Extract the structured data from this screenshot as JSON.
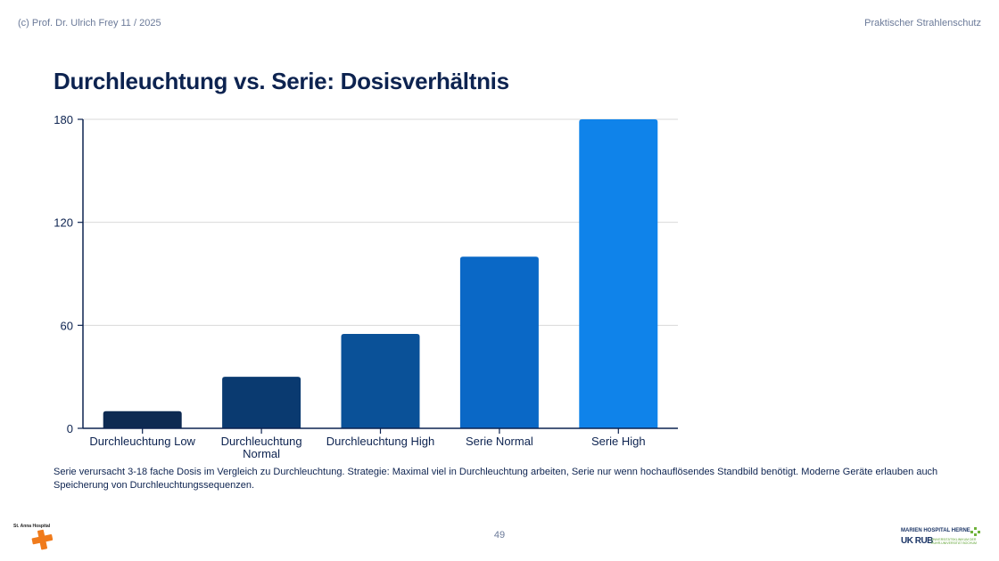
{
  "header": {
    "left": "(c) Prof. Dr. Ulrich Frey 11 / 2025",
    "right": "Praktischer Strahlenschutz"
  },
  "title": "Durchleuchtung vs. Serie: Dosisverhältnis",
  "chart_data": {
    "type": "bar",
    "title": "",
    "xlabel": "",
    "ylabel": "",
    "categories": [
      [
        "Durchleuchtung Low"
      ],
      [
        "Durchleuchtung",
        "Normal"
      ],
      [
        "Durchleuchtung High"
      ],
      [
        "Serie Normal"
      ],
      [
        "Serie High"
      ]
    ],
    "values": [
      10,
      30,
      55,
      100,
      180
    ],
    "colors": [
      "#0d2a52",
      "#0a3a70",
      "#0a5198",
      "#0a68c6",
      "#0f83ea"
    ],
    "ylim": [
      0,
      180
    ],
    "yticks": [
      0,
      60,
      120,
      180
    ],
    "grid": true
  },
  "caption": "Serie verursacht 3-18 fache Dosis im Vergleich zu Durchleuchtung. Strategie: Maximal viel in Durchleuchtung arbeiten, Serie nur wenn hochauflösendes Standbild benötigt. Moderne Geräte erlauben auch Speicherung von Durchleuchtungssequenzen.",
  "page_number": "49",
  "logos": {
    "left": "St. Anna Hospital",
    "right_top": "MARIEN HOSPITAL HERNE",
    "right_bottom": "UK RUB",
    "right_sub": "UNIVERSITÄTSKLINIKUM DER RUHR-UNIVERSITÄT BOCHUM",
    "accent": "#f07b1c",
    "green": "#6fb33b"
  }
}
